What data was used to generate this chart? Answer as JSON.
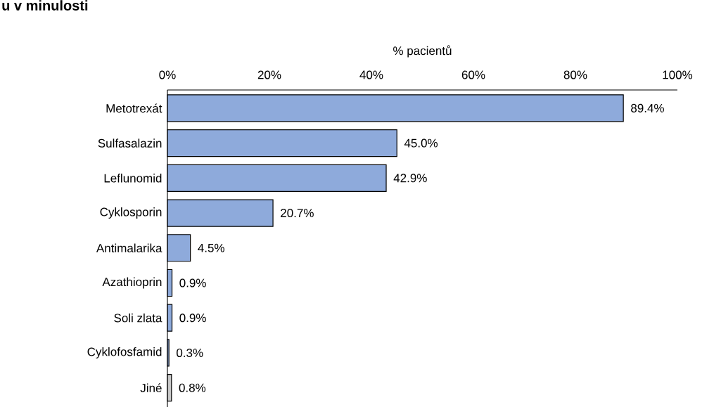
{
  "chart_data": {
    "type": "bar",
    "orientation": "horizontal",
    "title": "u v minulosti",
    "xlabel": "% pacientů",
    "categories": [
      "Metotrexát",
      "Sulfasalazin",
      "Leflunomid",
      "Cyklosporin",
      "Antimalarika",
      "Azathioprin",
      "Soli zlata",
      "Cyklofosfamid",
      "Jiné"
    ],
    "values": [
      89.4,
      45.0,
      42.9,
      20.7,
      4.5,
      0.9,
      0.9,
      0.3,
      0.8
    ],
    "value_labels": [
      "89.4%",
      "45.0%",
      "42.9%",
      "20.7%",
      "4.5%",
      "0.9%",
      "0.9%",
      "0.3%",
      "0.8%"
    ],
    "colors": [
      "#8eaadb",
      "#8eaadb",
      "#8eaadb",
      "#8eaadb",
      "#8eaadb",
      "#8eaadb",
      "#8eaadb",
      "#8eaadb",
      "#c8c8c8"
    ],
    "xlim": [
      0,
      100
    ],
    "xticks": [
      {
        "value": 0,
        "label": "0%"
      },
      {
        "value": 20,
        "label": "20%"
      },
      {
        "value": 40,
        "label": "40%"
      },
      {
        "value": 60,
        "label": "60%"
      },
      {
        "value": 80,
        "label": "80%"
      },
      {
        "value": 100,
        "label": "100%"
      }
    ],
    "grid": false
  }
}
